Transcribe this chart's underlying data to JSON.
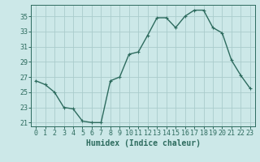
{
  "x": [
    0,
    1,
    2,
    3,
    4,
    5,
    6,
    7,
    8,
    9,
    10,
    11,
    12,
    13,
    14,
    15,
    16,
    17,
    18,
    19,
    20,
    21,
    22,
    23
  ],
  "y": [
    26.5,
    26.0,
    25.0,
    23.0,
    22.8,
    21.2,
    21.0,
    21.0,
    26.5,
    27.0,
    30.0,
    30.3,
    32.5,
    34.8,
    34.8,
    33.5,
    35.0,
    35.8,
    35.8,
    33.5,
    32.8,
    29.2,
    27.2,
    25.5
  ],
  "line_color": "#2d6b5e",
  "marker": "+",
  "marker_size": 3,
  "linewidth": 1.0,
  "bg_color": "#cce8e8",
  "grid_color": "#aacccc",
  "xlabel": "Humidex (Indice chaleur)",
  "ylim": [
    20.5,
    36.5
  ],
  "xlim": [
    -0.5,
    23.5
  ],
  "yticks": [
    21,
    23,
    25,
    27,
    29,
    31,
    33,
    35
  ],
  "xticks": [
    0,
    1,
    2,
    3,
    4,
    5,
    6,
    7,
    8,
    9,
    10,
    11,
    12,
    13,
    14,
    15,
    16,
    17,
    18,
    19,
    20,
    21,
    22,
    23
  ],
  "xtick_labels": [
    "0",
    "1",
    "2",
    "3",
    "4",
    "5",
    "6",
    "7",
    "8",
    "9",
    "10",
    "11",
    "12",
    "13",
    "14",
    "15",
    "16",
    "17",
    "18",
    "19",
    "20",
    "21",
    "22",
    "23"
  ],
  "xlabel_fontsize": 7,
  "tick_fontsize": 6,
  "axis_color": "#2d6b5e",
  "spine_color": "#2d6b5e"
}
